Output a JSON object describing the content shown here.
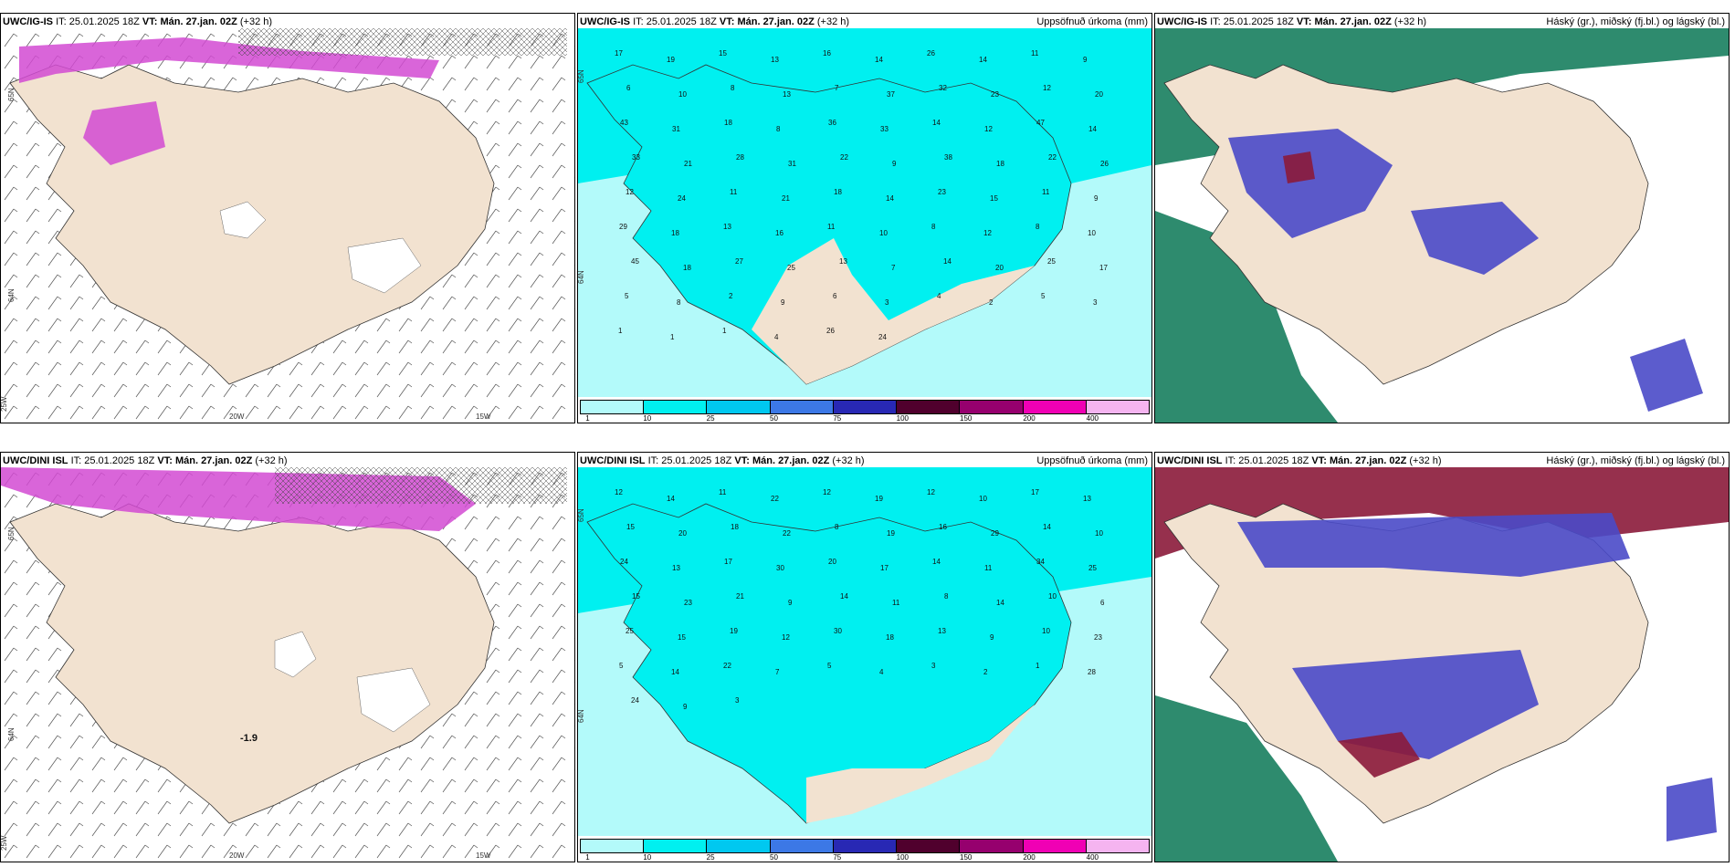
{
  "panels": [
    {
      "model": "UWC/IG-IS",
      "issue_label": "IT:",
      "issue_time": "25.01.2025 18Z",
      "vt_label": "VT:",
      "vt_value": "Mán. 27.jan. 02Z",
      "lead": "(+32 h)",
      "right_title": "",
      "axis_labels": {
        "lat_top": "65N",
        "lat_mid": "64N",
        "lon_a": "25W",
        "lon_b": "20W",
        "lon_c": "15W"
      }
    },
    {
      "model": "UWC/IG-IS",
      "issue_label": "IT:",
      "issue_time": "25.01.2025 18Z",
      "vt_label": "VT:",
      "vt_value": "Mán. 27.jan. 02Z",
      "lead": "(+32 h)",
      "right_title": "Uppsöfnuð úrkoma (mm)",
      "axis_labels": {
        "lat_top": "65N",
        "lat_mid": "64N"
      }
    },
    {
      "model": "UWC/IG-IS",
      "issue_label": "IT:",
      "issue_time": "25.01.2025 18Z",
      "vt_label": "VT:",
      "vt_value": "Mán. 27.jan. 02Z",
      "lead": "(+32 h)",
      "right_title": "Háský (gr.), miðský (fj.bl.) og lágský (bl.)"
    },
    {
      "model": "UWC/DINI ISL",
      "issue_label": "IT:",
      "issue_time": "25.01.2025 18Z",
      "vt_label": "VT:",
      "vt_value": "Mán. 27.jan. 02Z",
      "lead": "(+32 h)",
      "right_title": "",
      "axis_labels": {
        "lat_top": "65N",
        "lat_mid": "64N",
        "lon_a": "25W",
        "lon_b": "20W",
        "lon_c": "15W"
      },
      "center_value": "-1.9"
    },
    {
      "model": "UWC/DINI ISL",
      "issue_label": "IT:",
      "issue_time": "25.01.2025 18Z",
      "vt_label": "VT:",
      "vt_value": "Mán. 27.jan. 02Z",
      "lead": "(+32 h)",
      "right_title": "Uppsöfnuð úrkoma (mm)",
      "axis_labels": {
        "lat_top": "65N",
        "lat_mid": "64N"
      }
    },
    {
      "model": "UWC/DINI ISL",
      "issue_label": "IT:",
      "issue_time": "25.01.2025 18Z",
      "vt_label": "VT:",
      "vt_value": "Mán. 27.jan. 02Z",
      "lead": "(+32 h)",
      "right_title": "Háský (gr.), miðský (fj.bl.) og lágský (bl.)"
    }
  ],
  "precip_colorbar": {
    "labels": [
      "1",
      "10",
      "25",
      "50",
      "75",
      "100",
      "150",
      "200",
      "400"
    ],
    "colors": [
      "#b3fafa",
      "#00f0f0",
      "#00c8f0",
      "#3c78e6",
      "#2828b4",
      "#50002d",
      "#96006e",
      "#f000b4",
      "#f5b4f0"
    ]
  },
  "precip_values_top": [
    "17",
    "19",
    "15",
    "13",
    "16",
    "14",
    "26",
    "14",
    "11",
    "9",
    "6",
    "10",
    "8",
    "13",
    "7",
    "37",
    "32",
    "23",
    "12",
    "20",
    "43",
    "31",
    "18",
    "8",
    "36",
    "33",
    "14",
    "12",
    "47",
    "14",
    "33",
    "21",
    "28",
    "31",
    "22",
    "9",
    "38",
    "18",
    "22",
    "26",
    "12",
    "24",
    "11",
    "21",
    "18",
    "14",
    "23",
    "15",
    "11",
    "9",
    "29",
    "18",
    "13",
    "16",
    "11",
    "10",
    "8",
    "12",
    "8",
    "10",
    "45",
    "18",
    "27",
    "25",
    "13",
    "7",
    "14",
    "20",
    "25",
    "17",
    "5",
    "8",
    "2",
    "9",
    "6",
    "3",
    "4",
    "2",
    "5",
    "3",
    "1",
    "1",
    "1",
    "4",
    "26",
    "24"
  ],
  "precip_values_bottom": [
    "12",
    "14",
    "11",
    "22",
    "12",
    "19",
    "12",
    "10",
    "17",
    "13",
    "15",
    "20",
    "18",
    "22",
    "8",
    "19",
    "16",
    "29",
    "14",
    "10",
    "24",
    "13",
    "17",
    "30",
    "20",
    "17",
    "14",
    "11",
    "34",
    "25",
    "15",
    "23",
    "21",
    "9",
    "14",
    "11",
    "8",
    "14",
    "10",
    "6",
    "25",
    "15",
    "19",
    "12",
    "30",
    "18",
    "13",
    "9",
    "10",
    "23",
    "5",
    "14",
    "22",
    "7",
    "5",
    "4",
    "3",
    "2",
    "1",
    "28",
    "24",
    "9",
    "3"
  ],
  "colors": {
    "land": "#f2e2d0",
    "sea_cyan": "#00f0f0",
    "sea_light": "#b3fafa",
    "magenta": "#d24ad2",
    "purple_dark": "#6b2a6b",
    "cloud_blue": "#4a4ac8",
    "cloud_green": "#2e8b6e",
    "cloud_red": "#8b1a3a"
  }
}
